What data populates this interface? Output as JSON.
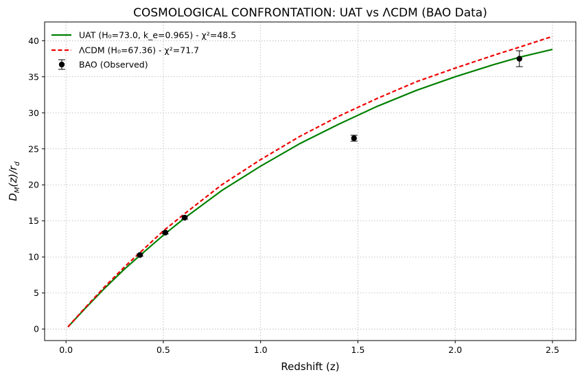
{
  "chart_data": {
    "type": "line",
    "title": "COSMOLOGICAL CONFRONTATION: UAT vs ΛCDM (BAO Data)",
    "xlabel": "Redshift (z)",
    "ylabel_main": "D",
    "ylabel_sub_m": "M",
    "ylabel_mid": "(z)/r",
    "ylabel_sub_d": "d",
    "xlim": [
      -0.11,
      2.62
    ],
    "ylim": [
      -1.6,
      42.6
    ],
    "xticks": [
      0.0,
      0.5,
      1.0,
      1.5,
      2.0,
      2.5
    ],
    "xtick_labels": [
      "0.0",
      "0.5",
      "1.0",
      "1.5",
      "2.0",
      "2.5"
    ],
    "yticks": [
      0,
      5,
      10,
      15,
      20,
      25,
      30,
      35,
      40
    ],
    "ytick_labels": [
      "0",
      "5",
      "10",
      "15",
      "20",
      "25",
      "30",
      "35",
      "40"
    ],
    "grid": true,
    "legend_position": "top-left",
    "series": [
      {
        "name": "UAT (H₀=73.0, k_e=0.965) - χ²=48.5",
        "color": "#008000",
        "style": "solid",
        "x": [
          0.01,
          0.1,
          0.2,
          0.3,
          0.38,
          0.5,
          0.61,
          0.8,
          1.0,
          1.2,
          1.4,
          1.6,
          1.8,
          2.0,
          2.2,
          2.33,
          2.5
        ],
        "y": [
          0.3,
          2.9,
          5.7,
          8.3,
          10.2,
          13.0,
          15.4,
          19.2,
          22.6,
          25.7,
          28.4,
          30.9,
          33.1,
          35.0,
          36.7,
          37.7,
          38.8
        ]
      },
      {
        "name": "ΛCDM (H₀=67.36) - χ²=71.7",
        "color": "#ee0000",
        "style": "dashed",
        "x": [
          0.01,
          0.1,
          0.2,
          0.3,
          0.38,
          0.5,
          0.61,
          0.8,
          1.0,
          1.2,
          1.4,
          1.6,
          1.8,
          2.0,
          2.2,
          2.33,
          2.5
        ],
        "y": [
          0.3,
          3.0,
          5.9,
          8.6,
          10.6,
          13.6,
          16.0,
          20.0,
          23.5,
          26.7,
          29.5,
          32.0,
          34.3,
          36.2,
          38.0,
          39.1,
          40.6
        ]
      }
    ],
    "observed": {
      "name": "BAO (Observed)",
      "color": "#000000",
      "points": [
        {
          "x": 0.38,
          "y": 10.27,
          "err": 0.15
        },
        {
          "x": 0.51,
          "y": 13.38,
          "err": 0.18
        },
        {
          "x": 0.61,
          "y": 15.45,
          "err": 0.2
        },
        {
          "x": 1.48,
          "y": 26.47,
          "err": 0.41
        },
        {
          "x": 2.33,
          "y": 37.5,
          "err": 1.1
        }
      ]
    }
  }
}
